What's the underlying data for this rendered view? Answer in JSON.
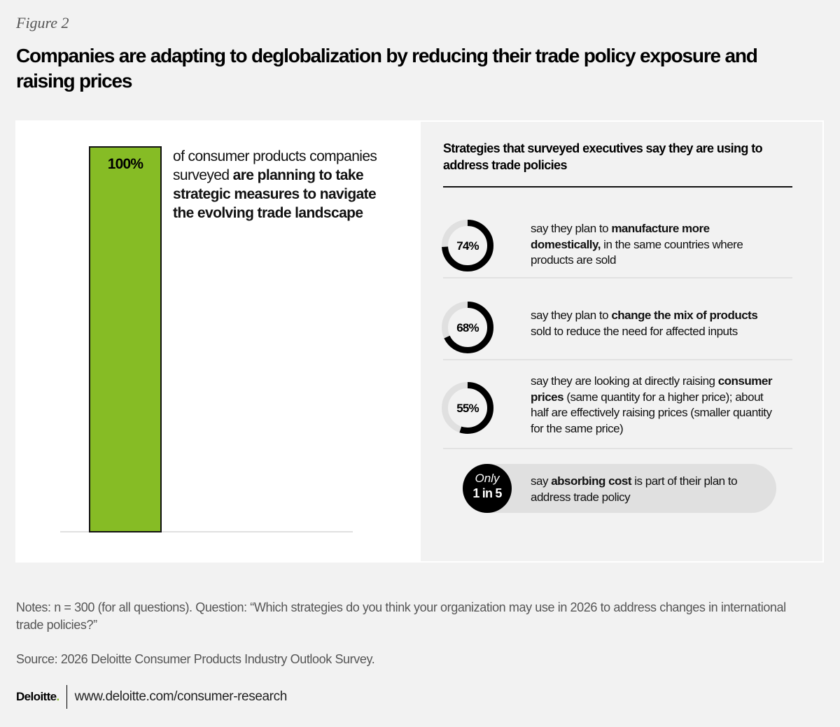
{
  "figure_label": "Figure 2",
  "title": "Companies are adapting to deglobalization by reducing their trade policy exposure and raising prices",
  "colors": {
    "bar_green": "#86bc25",
    "donut_fill": "#000000",
    "donut_track": "#e0e0e0",
    "panel_gray": "#f2f2f2"
  },
  "left_panel": {
    "bar_value_label": "100%",
    "text_plain": "of consumer products companies surveyed ",
    "text_bold": "are planning to take strategic measures to navigate the evolving trade landscape"
  },
  "right_panel": {
    "title": "Strategies that surveyed executives say they are using to address trade policies",
    "items": [
      {
        "label": "74%",
        "pre": "say they plan to ",
        "bold": "manufacture more domestically,",
        "post": " in the same countries where products are sold"
      },
      {
        "label": "68%",
        "pre": "say they plan to ",
        "bold": "change the mix of products",
        "post": " sold to reduce the need for affected inputs"
      },
      {
        "label": "55%",
        "pre": "say they are looking at directly raising ",
        "bold": "consumer prices",
        "post": " (same quantity for a higher price); about half are effectively raising prices (smaller quantity for the same price)"
      }
    ],
    "callout": {
      "badge_line1": "Only",
      "badge_line2": "1 in 5",
      "pre": "say ",
      "bold": "absorbing cost",
      "post": " is part of their plan to address trade policy"
    }
  },
  "chart_data": [
    {
      "type": "bar",
      "categories": [
        "Consumer products companies planning strategic measures"
      ],
      "values": [
        100
      ],
      "unit": "%",
      "ylim": [
        0,
        100
      ],
      "data_labels": [
        "100%"
      ]
    },
    {
      "type": "pie",
      "subtype": "donut",
      "title": "Strategies that surveyed executives say they are using to address trade policies",
      "categories": [
        "Manufacture more domestically",
        "Change the mix of products",
        "Directly raising consumer prices"
      ],
      "values": [
        74,
        68,
        55
      ],
      "unit": "%"
    }
  ],
  "notes": "Notes: n = 300 (for all questions). Question: “Which strategies do you think your organization may use in 2026 to address changes in international trade policies?”",
  "source": "Source: 2026 Deloitte Consumer Products Industry Outlook Survey.",
  "footer": {
    "logo_text": "Deloitte",
    "logo_dot": ".",
    "url": "www.deloitte.com/consumer-research"
  }
}
